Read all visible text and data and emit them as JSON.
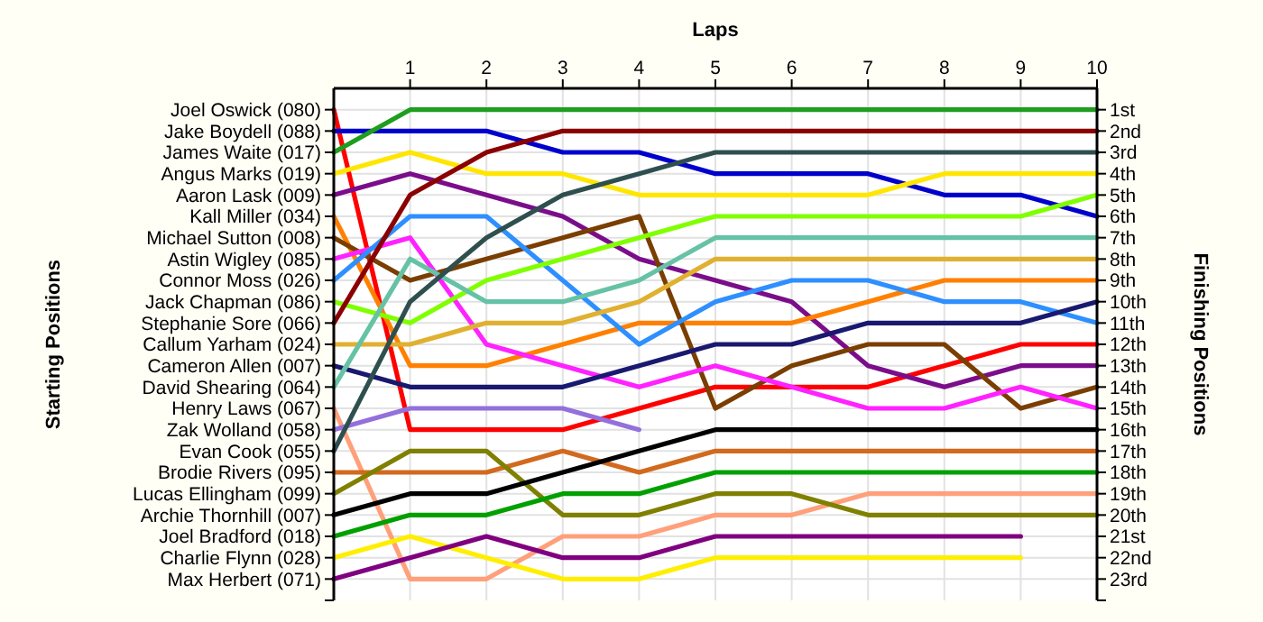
{
  "chart_data": {
    "type": "line",
    "xlabel": "Laps",
    "annotations": [
      "Starting Positions"
    ],
    "y2label": "Finishing Positions",
    "x": [
      0,
      1,
      2,
      3,
      4,
      5,
      6,
      7,
      8,
      9,
      10
    ],
    "xlim": [
      0,
      10
    ],
    "xticks": [
      1,
      2,
      3,
      4,
      5,
      6,
      7,
      8,
      9,
      10
    ],
    "y_categories": [
      "Joel Oswick (080)",
      "Jake Boydell (088)",
      "James Waite (017)",
      "Angus Marks (019)",
      "Aaron Lask (009)",
      "Kall Miller (034)",
      "Michael Sutton (008)",
      "Astin Wigley (085)",
      "Connor Moss (026)",
      "Jack Chapman (086)",
      "Stephanie Sore (066)",
      "Callum Yarham (024)",
      "Cameron Allen (007)",
      "David Shearing (064)",
      "Henry Laws (067)",
      "Zak Wolland (058)",
      "Evan Cook (055)",
      "Brodie Rivers (095)",
      "Lucas Ellingham (099)",
      "Archie Thornhill (007)",
      "Joel Bradford (018)",
      "Charlie Flynn (028)",
      "Max Herbert (071)"
    ],
    "y2lim": [
      24,
      0
    ],
    "y2ticks": [
      {
        "value": 1,
        "label": "1st"
      },
      {
        "value": 2,
        "label": "2nd"
      },
      {
        "value": 3,
        "label": "3rd"
      },
      {
        "value": 4,
        "label": "4th"
      },
      {
        "value": 5,
        "label": "5th"
      },
      {
        "value": 6,
        "label": "6th"
      },
      {
        "value": 7,
        "label": "7th"
      },
      {
        "value": 8,
        "label": "8th"
      },
      {
        "value": 9,
        "label": "9th"
      },
      {
        "value": 10,
        "label": "10th"
      },
      {
        "value": 11,
        "label": "11th"
      },
      {
        "value": 12,
        "label": "12th"
      },
      {
        "value": 13,
        "label": "13th"
      },
      {
        "value": 14,
        "label": "14th"
      },
      {
        "value": 15,
        "label": "15th"
      },
      {
        "value": 16,
        "label": "16th"
      },
      {
        "value": 17,
        "label": "17th"
      },
      {
        "value": 18,
        "label": "18th"
      },
      {
        "value": 19,
        "label": "19th"
      },
      {
        "value": 20,
        "label": "20th"
      },
      {
        "value": 21,
        "label": "21st"
      },
      {
        "value": 22,
        "label": "22nd"
      },
      {
        "value": 23,
        "label": "23rd"
      },
      {
        "value": 24,
        "label": null
      }
    ],
    "grid": true,
    "marker": "none",
    "line_style": "solid",
    "series": [
      {
        "axis": "y2",
        "color": "#ff0000",
        "values": [
          1,
          16,
          16,
          16,
          15,
          14,
          14,
          14,
          13,
          12,
          12
        ]
      },
      {
        "axis": "y2",
        "color": "#0000cc",
        "values": [
          2,
          2,
          2,
          3,
          3,
          4,
          4,
          4,
          5,
          5,
          6
        ]
      },
      {
        "axis": "y2",
        "color": "#1e9e1e",
        "values": [
          3,
          1,
          1,
          1,
          1,
          1,
          1,
          1,
          1,
          1,
          1
        ]
      },
      {
        "axis": "y2",
        "color": "#ffe600",
        "values": [
          4,
          3,
          4,
          4,
          5,
          5,
          5,
          5,
          4,
          4,
          4
        ]
      },
      {
        "axis": "y2",
        "color": "#7b0d8a",
        "values": [
          5,
          4,
          5,
          6,
          8,
          9,
          10,
          13,
          14,
          13,
          13
        ]
      },
      {
        "axis": "y2",
        "color": "#ff8000",
        "values": [
          6,
          13,
          13,
          12,
          11,
          11,
          11,
          10,
          9,
          9,
          9
        ]
      },
      {
        "axis": "y2",
        "color": "#7a3e00",
        "values": [
          7,
          9,
          8,
          7,
          6,
          15,
          13,
          12,
          12,
          15,
          14
        ]
      },
      {
        "axis": "y2",
        "color": "#ff22ff",
        "values": [
          8,
          7,
          12,
          13,
          14,
          13,
          14,
          15,
          15,
          14,
          15
        ]
      },
      {
        "axis": "y2",
        "color": "#2e8fff",
        "values": [
          9,
          6,
          6,
          9,
          12,
          10,
          9,
          9,
          10,
          10,
          11
        ]
      },
      {
        "axis": "y2",
        "color": "#80ff00",
        "values": [
          10,
          11,
          9,
          8,
          7,
          6,
          6,
          6,
          6,
          6,
          5
        ]
      },
      {
        "axis": "y2",
        "color": "#8b0000",
        "values": [
          11,
          5,
          3,
          2,
          2,
          2,
          2,
          2,
          2,
          2,
          2
        ]
      },
      {
        "axis": "y2",
        "color": "#e0b030",
        "values": [
          12,
          12,
          11,
          11,
          10,
          8,
          8,
          8,
          8,
          8,
          8
        ]
      },
      {
        "axis": "y2",
        "color": "#191970",
        "values": [
          13,
          14,
          14,
          14,
          13,
          12,
          12,
          11,
          11,
          11,
          10
        ]
      },
      {
        "axis": "y2",
        "color": "#66c2a5",
        "values": [
          14,
          8,
          10,
          10,
          9,
          7,
          7,
          7,
          7,
          7,
          7
        ]
      },
      {
        "axis": "y2",
        "color": "#ffa07a",
        "values": [
          15,
          23,
          23,
          21,
          21,
          20,
          20,
          19,
          19,
          19,
          19
        ]
      },
      {
        "axis": "y2",
        "color": "#9370db",
        "values": [
          16,
          15,
          15,
          15,
          16,
          null,
          null,
          null,
          null,
          null,
          null
        ]
      },
      {
        "axis": "y2",
        "color": "#2f4f4f",
        "values": [
          17,
          10,
          7,
          5,
          4,
          3,
          3,
          3,
          3,
          3,
          3
        ]
      },
      {
        "axis": "y2",
        "color": "#d2691e",
        "values": [
          18,
          18,
          18,
          17,
          18,
          17,
          17,
          17,
          17,
          17,
          17
        ]
      },
      {
        "axis": "y2",
        "color": "#808000",
        "values": [
          19,
          17,
          17,
          20,
          20,
          19,
          19,
          20,
          20,
          20,
          20
        ]
      },
      {
        "axis": "y2",
        "color": "#000000",
        "values": [
          20,
          19,
          19,
          18,
          17,
          16,
          16,
          16,
          16,
          16,
          16
        ]
      },
      {
        "axis": "y2",
        "color": "#00a000",
        "values": [
          21,
          20,
          20,
          19,
          19,
          18,
          18,
          18,
          18,
          18,
          18
        ]
      },
      {
        "axis": "y2",
        "color": "#ffee00",
        "values": [
          22,
          21,
          22,
          23,
          23,
          22,
          22,
          22,
          22,
          22,
          null
        ]
      },
      {
        "axis": "y2",
        "color": "#800080",
        "values": [
          23,
          22,
          21,
          22,
          22,
          21,
          21,
          21,
          21,
          21,
          null
        ]
      }
    ]
  }
}
